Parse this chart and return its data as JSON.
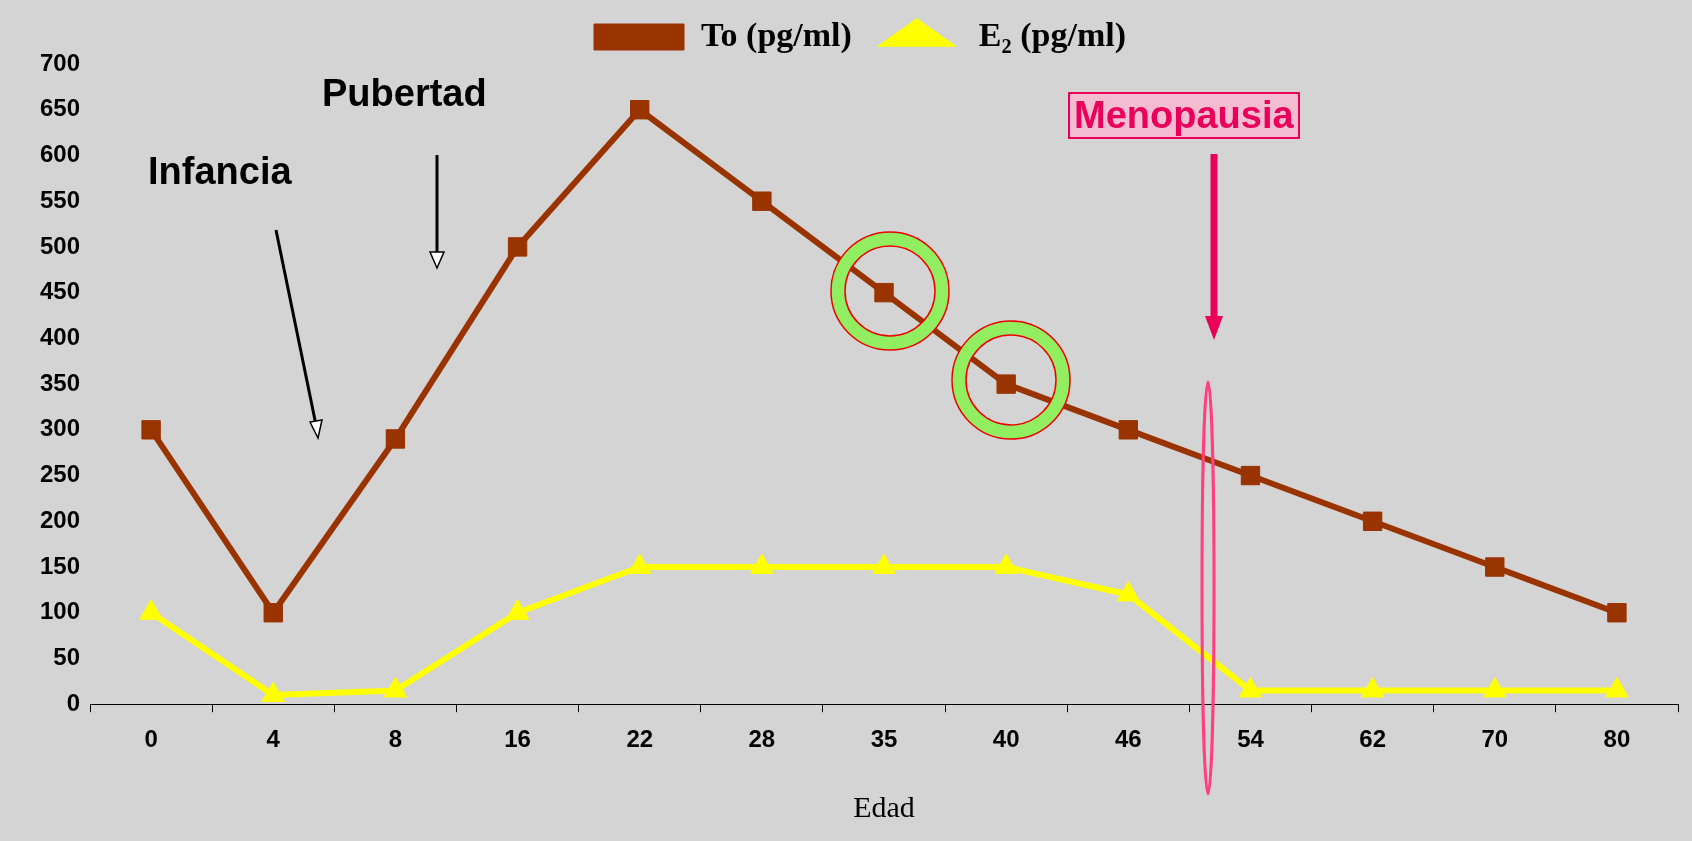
{
  "chart_data": {
    "type": "line",
    "xlabel": "Edad",
    "categories": [
      "0",
      "4",
      "8",
      "16",
      "22",
      "28",
      "35",
      "40",
      "46",
      "54",
      "62",
      "70",
      "80"
    ],
    "series": [
      {
        "name": "To (pg/ml)",
        "color": "#993300",
        "marker": "square",
        "values": [
          300,
          100,
          290,
          500,
          650,
          550,
          450,
          350,
          300,
          250,
          200,
          150,
          100
        ]
      },
      {
        "name": "E₂ (pg/ml)",
        "color": "#ffff00",
        "marker": "triangle",
        "values": [
          100,
          10,
          15,
          100,
          150,
          150,
          150,
          150,
          120,
          15,
          15,
          15,
          15
        ]
      }
    ],
    "ylim": [
      0,
      700
    ],
    "yticks": [
      0,
      50,
      100,
      150,
      200,
      250,
      300,
      350,
      400,
      450,
      500,
      550,
      600,
      650,
      700
    ],
    "grid": false,
    "legend": "top",
    "annotations": [
      "Infancia",
      "Pubertad",
      "Menopausia"
    ]
  }
}
